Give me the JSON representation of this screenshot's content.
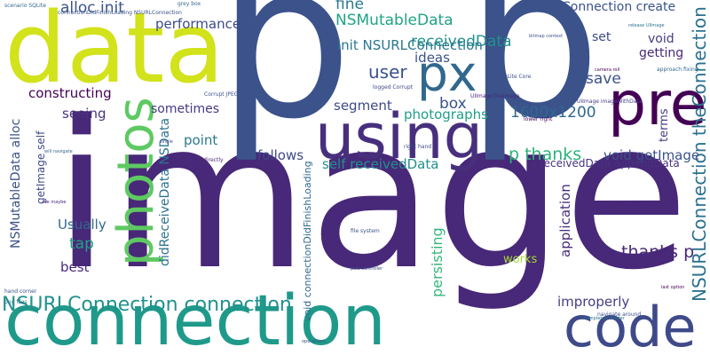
{
  "words": [
    "image",
    "p",
    "p",
    "data",
    "connection",
    "using",
    "pre",
    "px",
    "photos",
    "code",
    "NSURLConnection connection",
    "NSURLConnection theConnection",
    "alloc init",
    "NSMutableData",
    "receivedData",
    "fine",
    "theConnection create",
    "performance",
    "set",
    "init NSURLConnection",
    "ideas",
    "save",
    "void",
    "getting",
    "user",
    "constructing",
    "seeing",
    "sometimes",
    "segment",
    "box",
    "photographs",
    "1600x1200",
    "p thanks",
    "void getImage",
    "point",
    "follows",
    "self receivedData",
    "receivedData appendData",
    "Usually",
    "tap",
    "best",
    "thanks p",
    "works",
    "improperly",
    "didReceiveData NSData",
    "NSMutableData alloc",
    "getImage self",
    "void connectionDidFinishLoading",
    "persisting",
    "application",
    "terms",
    "scenario SQLite",
    "connectionDidFinishLoading NSURLConnection",
    "SQLite Core",
    "UIImage theImage",
    "UIImage imageWithData",
    "logged Corrupt",
    "Corrupt JPEG",
    "camera roll",
    "release UIImage",
    "approach fixing",
    "lower right",
    "bitmap context",
    "right hand",
    "file system",
    "navigate around",
    "files directly",
    "grey box",
    "png files",
    "hand corner",
    "last option",
    "pale controller",
    "operations",
    "will navigate",
    "see maybe",
    "single",
    "completely render"
  ]
}
